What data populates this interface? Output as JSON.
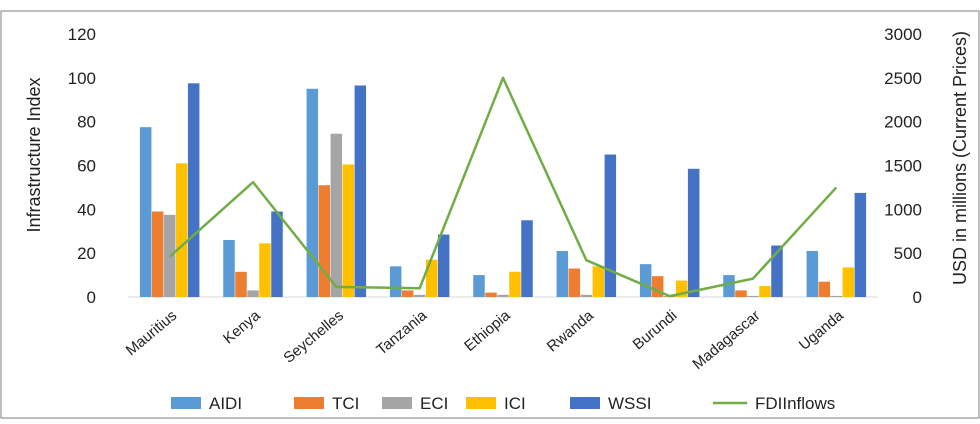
{
  "chart_data": {
    "type": "bar",
    "categories": [
      "Mauritius",
      "Kenya",
      "Seychelles",
      "Tanzania",
      "Ethiopia",
      "Rwanda",
      "Burundi",
      "Madagascar",
      "Uganda"
    ],
    "series": [
      {
        "name": "AIDI",
        "type": "bar",
        "axis": "left",
        "color": "#5b9bd5",
        "values": [
          77.5,
          26,
          95,
          14,
          10,
          21,
          15,
          10,
          21
        ]
      },
      {
        "name": "TCI",
        "type": "bar",
        "axis": "left",
        "color": "#ed7d31",
        "values": [
          39,
          11.5,
          51,
          3,
          2,
          13,
          9.5,
          3,
          7
        ]
      },
      {
        "name": "ECI",
        "type": "bar",
        "axis": "left",
        "color": "#a5a5a5",
        "values": [
          37.5,
          3,
          74.5,
          1,
          1,
          1,
          0.5,
          0.5,
          0.5
        ]
      },
      {
        "name": "ICI",
        "type": "bar",
        "axis": "left",
        "color": "#ffc000",
        "values": [
          61,
          24.5,
          60.5,
          17,
          11.5,
          14,
          7.5,
          5,
          13.5
        ]
      },
      {
        "name": "WSSI",
        "type": "bar",
        "axis": "left",
        "color": "#4472c4",
        "values": [
          97.5,
          39,
          96.5,
          28.5,
          35,
          65,
          58.5,
          23.5,
          47.5
        ]
      },
      {
        "name": "FDIInflows",
        "type": "line",
        "axis": "right",
        "color": "#70ad47",
        "values": [
          460,
          1310,
          115,
          100,
          2500,
          420,
          10,
          210,
          1250
        ]
      }
    ],
    "ylabel": "Infrastructure Index",
    "y2label": "USD in millions (Current Prices)",
    "ylim": [
      0,
      120
    ],
    "y2lim": [
      0,
      3000
    ],
    "yticks": [
      "0",
      "20",
      "40",
      "60",
      "80",
      "100",
      "120"
    ],
    "y2ticks": [
      "0",
      "500",
      "1000",
      "1500",
      "2000",
      "2500",
      "3000"
    ],
    "grid": false,
    "legend_position": "bottom"
  }
}
